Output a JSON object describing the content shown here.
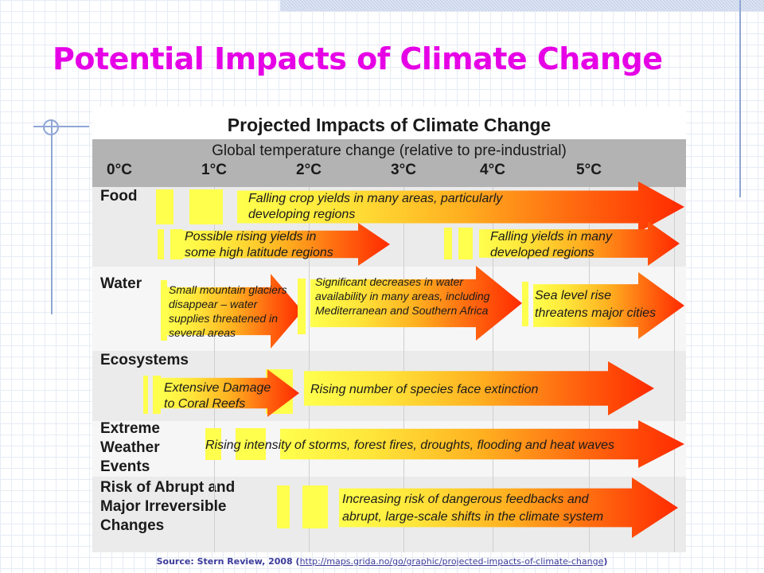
{
  "slide": {
    "title": "Potential Impacts of Climate Change",
    "source_prefix": "Source: Stern Review, 2008 (",
    "source_link": "http://maps.grida.no/go/graphic/projected-impacts-of-climate-change",
    "source_suffix": ")"
  },
  "figure": {
    "title": "Projected Impacts of Climate Change",
    "axis_label": "Global temperature change (relative to pre-industrial)",
    "ticks": [
      "0°C",
      "1°C",
      "2°C",
      "3°C",
      "4°C",
      "5°C"
    ],
    "sectors": {
      "food": "Food",
      "water": "Water",
      "ecosystems": "Ecosystems",
      "extreme_1": "Extreme",
      "extreme_2": "Weather",
      "extreme_3": "Events",
      "abrupt_1": "Risk of Abrupt and",
      "abrupt_2": "Major Irreversible",
      "abrupt_3": "Changes"
    },
    "impacts": {
      "food_1a": "Falling crop yields in many areas, particularly",
      "food_1b": "developing regions",
      "food_2a": "Possible rising yields in",
      "food_2b": "some high latitude regions",
      "food_3a": "Falling yields in many",
      "food_3b": "developed regions",
      "water_1a": "Small mountain glaciers",
      "water_1b": "disappear  – water",
      "water_1c": "supplies threatened in",
      "water_1d": "several areas",
      "water_2a": "Significant decreases in water",
      "water_2b": "availability in many areas, including",
      "water_2c": "Mediterranean and Southern Africa",
      "water_3a": "Sea level rise",
      "water_3b": "threatens major cities",
      "eco_1a": "Extensive Damage",
      "eco_1b": "to Coral Reefs",
      "eco_2": "Rising number of species face extinction",
      "weather_1": "Rising intensity of storms, forest fires, droughts, flooding and heat waves",
      "abrupt_1a": "Increasing risk of dangerous feedbacks and",
      "abrupt_1b": "abrupt, large-scale shifts in the climate system"
    }
  },
  "colors": {
    "title": "#e600e6",
    "arrow_start": "#ffff4d",
    "arrow_end": "#ff2a00",
    "header_band": "#b3b3b3"
  }
}
